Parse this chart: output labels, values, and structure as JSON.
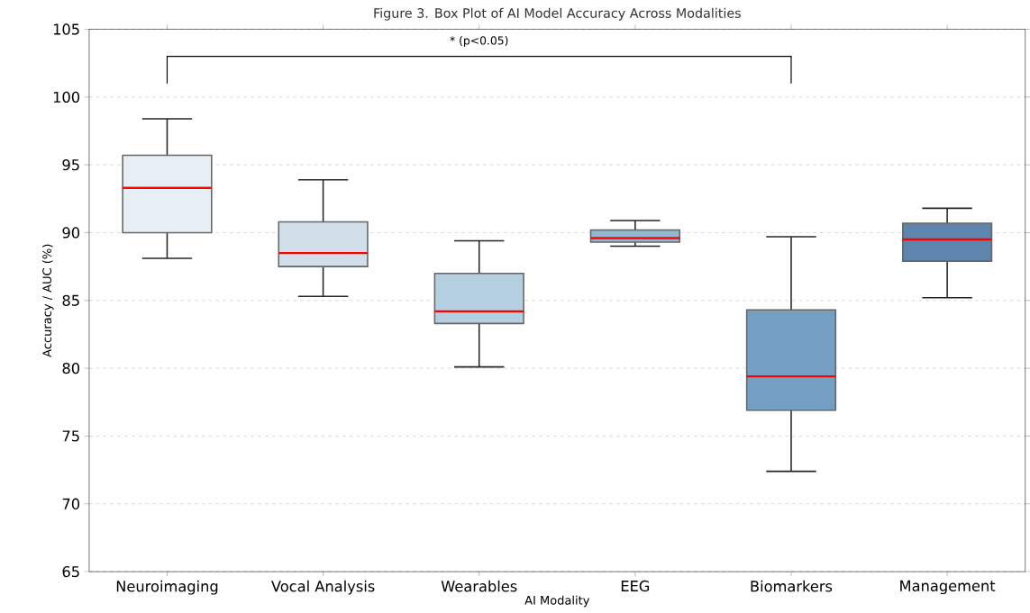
{
  "chart_data": {
    "type": "box",
    "title": "Figure 3. Box Plot of AI Model Accuracy Across Modalities",
    "xlabel": "AI Modality",
    "ylabel": "Accuracy / AUC (%)",
    "categories": [
      "Neuroimaging",
      "Vocal Analysis",
      "Wearables",
      "EEG",
      "Biomarkers",
      "Management"
    ],
    "boxes": [
      {
        "low": 88.1,
        "q1": 90.0,
        "median": 93.3,
        "q3": 95.7,
        "high": 98.4
      },
      {
        "low": 85.3,
        "q1": 87.5,
        "median": 88.5,
        "q3": 90.8,
        "high": 93.9
      },
      {
        "low": 80.1,
        "q1": 83.3,
        "median": 84.2,
        "q3": 87.0,
        "high": 89.4
      },
      {
        "low": 89.0,
        "q1": 89.3,
        "median": 89.6,
        "q3": 90.2,
        "high": 90.9
      },
      {
        "low": 72.4,
        "q1": 76.9,
        "median": 79.4,
        "q3": 84.3,
        "high": 89.7
      },
      {
        "low": 85.2,
        "q1": 87.9,
        "median": 89.5,
        "q3": 90.7,
        "high": 91.8
      }
    ],
    "colors": [
      "#e6eef6",
      "#d0dfea",
      "#b3cfe0",
      "#93b7d0",
      "#749fc2",
      "#5e85ae"
    ],
    "ylim": [
      65,
      105
    ],
    "yticks": [
      65,
      70,
      75,
      80,
      85,
      90,
      95,
      100,
      105
    ],
    "grid": "y",
    "annotations": [
      "* (p<0.05)"
    ]
  }
}
